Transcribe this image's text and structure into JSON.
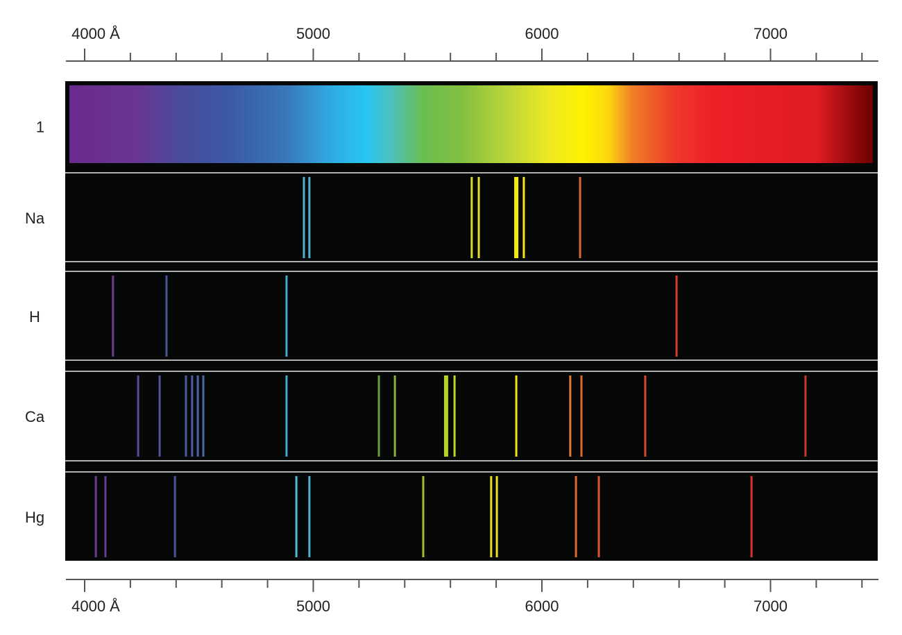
{
  "axis": {
    "unit_label": "Å",
    "major_ticks": [
      {
        "value": 4000,
        "label": "4000 Å"
      },
      {
        "value": 5000,
        "label": "5000"
      },
      {
        "value": 6000,
        "label": "6000"
      },
      {
        "value": 7000,
        "label": "7000"
      }
    ],
    "minor_tick_step": 200,
    "range": [
      3920,
      7470
    ]
  },
  "rows": [
    {
      "label": "1",
      "type": "continuous"
    },
    {
      "label": "Na",
      "type": "emission",
      "lines": [
        {
          "wl": 4959,
          "color": "#4fb3cf"
        },
        {
          "wl": 4983,
          "color": "#4fb3cf"
        },
        {
          "wl": 5693,
          "color": "#d6dc2a"
        },
        {
          "wl": 5724,
          "color": "#e2de30"
        },
        {
          "wl": 5888,
          "color": "#f7ea0a",
          "strong": true
        },
        {
          "wl": 5921,
          "color": "#f5e418"
        },
        {
          "wl": 6167,
          "color": "#d5683a"
        }
      ]
    },
    {
      "label": "H",
      "type": "emission",
      "lines": [
        {
          "wl": 4124,
          "color": "#6a3a8c"
        },
        {
          "wl": 4358,
          "color": "#4a5394"
        },
        {
          "wl": 4883,
          "color": "#45a6d4"
        },
        {
          "wl": 6589,
          "color": "#d83a2c"
        }
      ]
    },
    {
      "label": "Ca",
      "type": "emission",
      "lines": [
        {
          "wl": 4234,
          "color": "#5a4a98"
        },
        {
          "wl": 4328,
          "color": "#54509a"
        },
        {
          "wl": 4443,
          "color": "#4a5ca0"
        },
        {
          "wl": 4470,
          "color": "#4a60a4"
        },
        {
          "wl": 4495,
          "color": "#4a64a8"
        },
        {
          "wl": 4519,
          "color": "#4a68ac"
        },
        {
          "wl": 4883,
          "color": "#45a6d4"
        },
        {
          "wl": 5287,
          "color": "#6c9a3c"
        },
        {
          "wl": 5357,
          "color": "#8ab23a"
        },
        {
          "wl": 5581,
          "color": "#b8d02a",
          "strong": true
        },
        {
          "wl": 5618,
          "color": "#c4d62a"
        },
        {
          "wl": 5888,
          "color": "#f2e418"
        },
        {
          "wl": 6124,
          "color": "#de7838"
        },
        {
          "wl": 6173,
          "color": "#de6a34"
        },
        {
          "wl": 6452,
          "color": "#d8462c"
        },
        {
          "wl": 7153,
          "color": "#c8362c"
        }
      ]
    },
    {
      "label": "Hg",
      "type": "emission",
      "lines": [
        {
          "wl": 4049,
          "color": "#6a3a8c"
        },
        {
          "wl": 4091,
          "color": "#663c8e"
        },
        {
          "wl": 4395,
          "color": "#4a5398"
        },
        {
          "wl": 4926,
          "color": "#4fb8dc"
        },
        {
          "wl": 4983,
          "color": "#4fb3cf"
        },
        {
          "wl": 5481,
          "color": "#a4bc32"
        },
        {
          "wl": 5778,
          "color": "#e8dc22"
        },
        {
          "wl": 5803,
          "color": "#ece024"
        },
        {
          "wl": 6149,
          "color": "#dc6a34"
        },
        {
          "wl": 6249,
          "color": "#dc5430"
        },
        {
          "wl": 6917,
          "color": "#d8322c"
        }
      ]
    }
  ],
  "colors": {
    "panel": "#060807",
    "separator": "#e8e8e8",
    "axis": "#555555"
  }
}
